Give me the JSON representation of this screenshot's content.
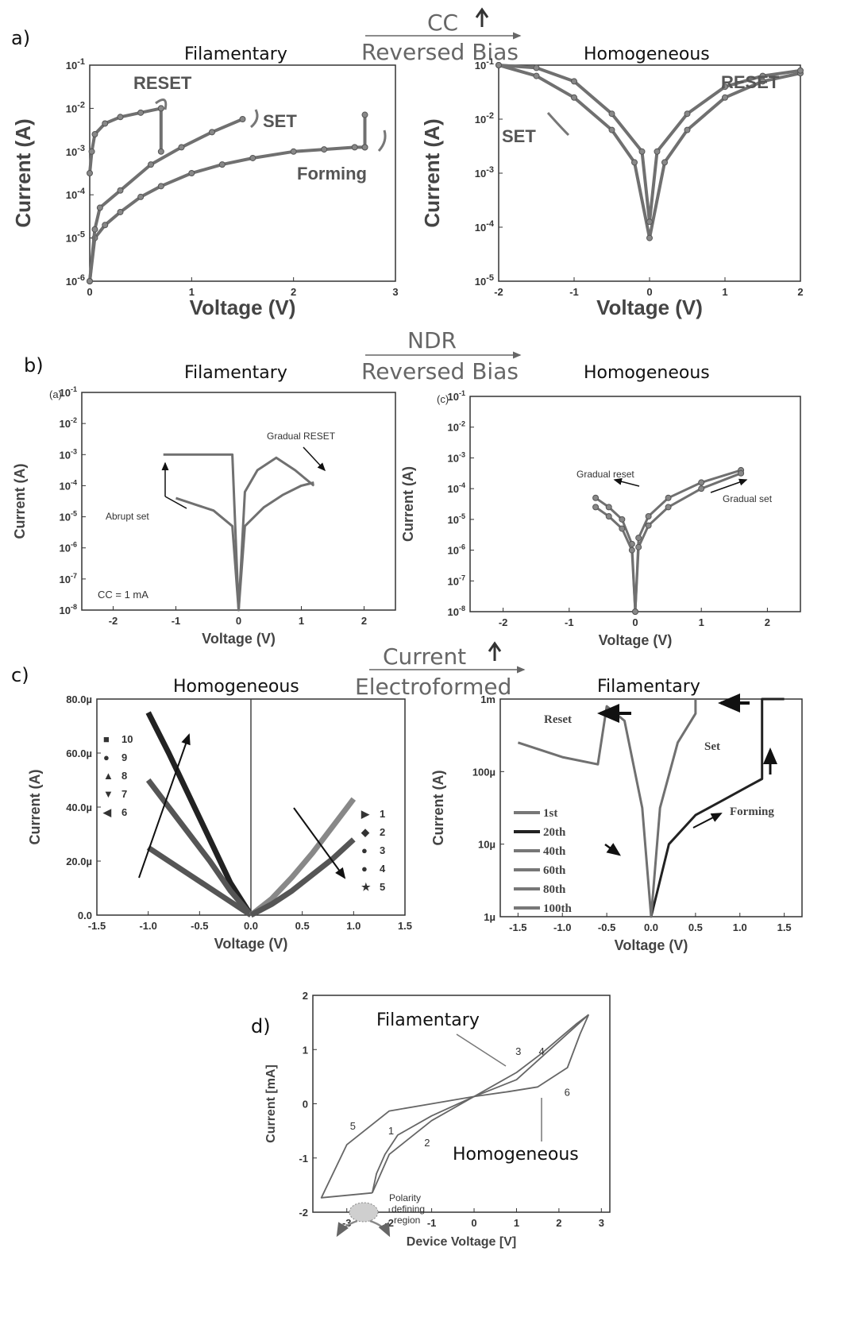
{
  "panel_labels": {
    "a": "a)",
    "b": "b)",
    "c": "c)",
    "d": "d)"
  },
  "transitions": {
    "a": {
      "top": "CC",
      "bottom": "Reversed Bias"
    },
    "b": {
      "top": "NDR",
      "bottom": "Reversed Bias"
    },
    "c": {
      "top": "Current",
      "bottom": "Electroformed"
    }
  },
  "colors": {
    "curve": "#707070",
    "dark": "#222222",
    "marker": "#888888",
    "frame": "#333333"
  },
  "chart_data": [
    {
      "id": "a1",
      "type": "line",
      "panel": "a)",
      "title": "Filamentary",
      "xlabel": "Voltage (V)",
      "ylabel": "Current (A)",
      "xlim": [
        0,
        3
      ],
      "ylim": [
        -6,
        -1
      ],
      "yscale": "log",
      "xticks": [
        "0",
        "1",
        "2",
        "3"
      ],
      "yticks": [
        "10^-6",
        "10^-5",
        "10^-4",
        "10^-3",
        "10^-2",
        "10^-1"
      ],
      "series": [
        {
          "x": [
            0.0,
            0.05,
            0.15,
            0.3,
            0.5,
            0.7,
            1.0,
            1.3,
            1.6,
            2.0,
            2.3,
            2.6,
            2.7
          ],
          "y": [
            -6.0,
            -5.0,
            -4.7,
            -4.4,
            -4.05,
            -3.8,
            -3.5,
            -3.3,
            -3.15,
            -3.0,
            -2.95,
            -2.9,
            -2.9
          ]
        },
        {
          "x": [
            2.7,
            2.7
          ],
          "y": [
            -2.9,
            -2.15
          ]
        },
        {
          "x": [
            0.0,
            0.05,
            0.1,
            0.3,
            0.6,
            0.9,
            1.2,
            1.5
          ],
          "y": [
            -6.0,
            -4.8,
            -4.3,
            -3.9,
            -3.3,
            -2.9,
            -2.55,
            -2.25
          ]
        },
        {
          "x": [
            0.0,
            0.02,
            0.05,
            0.15,
            0.3,
            0.5,
            0.7
          ],
          "y": [
            -3.5,
            -3.0,
            -2.6,
            -2.35,
            -2.2,
            -2.1,
            -2.0
          ]
        },
        {
          "x": [
            0.7,
            0.7
          ],
          "y": [
            -2.0,
            -3.0
          ]
        }
      ],
      "annotations": [
        "RESET",
        "SET",
        "Forming"
      ]
    },
    {
      "id": "a2",
      "type": "line",
      "panel": "a)",
      "title": "Homogeneous",
      "xlabel": "Voltage (V)",
      "ylabel": "Current (A)",
      "xlim": [
        -2,
        2
      ],
      "ylim": [
        -5,
        -1
      ],
      "yscale": "log",
      "xticks": [
        "-2",
        "-1",
        "0",
        "1",
        "2"
      ],
      "yticks": [
        "10^-5",
        "10^-4",
        "10^-3",
        "10^-2",
        "10^-1"
      ],
      "series": [
        {
          "x": [
            -2.0,
            -1.5,
            -1.0,
            -0.5,
            -0.2,
            0.0,
            0.2,
            0.5,
            1.0,
            1.5,
            2.0
          ],
          "y": [
            -1.0,
            -1.2,
            -1.6,
            -2.2,
            -2.8,
            -4.2,
            -2.8,
            -2.2,
            -1.6,
            -1.3,
            -1.15
          ]
        },
        {
          "x": [
            -2.0,
            -1.5,
            -1.0,
            -0.5,
            -0.1,
            0.0,
            0.1,
            0.5,
            1.0,
            1.5,
            2.0
          ],
          "y": [
            -1.0,
            -1.05,
            -1.3,
            -1.9,
            -2.6,
            -3.9,
            -2.6,
            -1.9,
            -1.4,
            -1.2,
            -1.1
          ]
        }
      ],
      "annotations": [
        "RESET",
        "SET"
      ]
    },
    {
      "id": "b1",
      "type": "line",
      "panel": "b)",
      "subpanel": "(a)",
      "title": "Filamentary",
      "xlabel": "Voltage (V)",
      "ylabel": "Current (A)",
      "xlim": [
        -2.5,
        2.5
      ],
      "ylim": [
        -8,
        -1
      ],
      "yscale": "log",
      "xticks": [
        "-2",
        "-1",
        "0",
        "1",
        "2"
      ],
      "yticks": [
        "10^-8",
        "10^-7",
        "10^-6",
        "10^-5",
        "10^-4",
        "10^-3",
        "10^-2",
        "10^-1"
      ],
      "series": [
        {
          "x": [
            -1.0,
            -0.7,
            -0.4,
            -0.1,
            0.0,
            0.1,
            0.4,
            0.7,
            1.0,
            1.2
          ],
          "y": [
            -4.4,
            -4.6,
            -4.8,
            -5.3,
            -8.0,
            -5.3,
            -4.7,
            -4.3,
            -4.0,
            -3.9
          ]
        },
        {
          "x": [
            -1.2,
            -0.6,
            -0.3,
            -0.1,
            0.0,
            0.1,
            0.3,
            0.6,
            0.9,
            1.2
          ],
          "y": [
            -3.0,
            -3.0,
            -3.0,
            -3.0,
            -8.0,
            -4.2,
            -3.5,
            -3.1,
            -3.5,
            -4.0
          ]
        }
      ],
      "annotations": [
        "Gradual RESET",
        "Abrupt set",
        "CC = 1 mA"
      ]
    },
    {
      "id": "b2",
      "type": "line",
      "panel": "b)",
      "subpanel": "(c)",
      "title": "Homogeneous",
      "xlabel": "Voltage (V)",
      "ylabel": "Current (A)",
      "xlim": [
        -2.5,
        2.5
      ],
      "ylim": [
        -8,
        -1
      ],
      "yscale": "log",
      "xticks": [
        "-2",
        "-1",
        "0",
        "1",
        "2"
      ],
      "yticks": [
        "10^-8",
        "10^-7",
        "10^-6",
        "10^-5",
        "10^-4",
        "10^-3",
        "10^-2",
        "10^-1"
      ],
      "series": [
        {
          "x": [
            -0.6,
            -0.4,
            -0.2,
            -0.05,
            0.0,
            0.05,
            0.2,
            0.5,
            1.0,
            1.6
          ],
          "y": [
            -4.3,
            -4.6,
            -5.0,
            -5.8,
            -8.0,
            -5.6,
            -4.9,
            -4.3,
            -3.8,
            -3.4
          ]
        },
        {
          "x": [
            -0.6,
            -0.4,
            -0.2,
            -0.05,
            0.0,
            0.05,
            0.2,
            0.5,
            1.0,
            1.6
          ],
          "y": [
            -4.6,
            -4.9,
            -5.3,
            -6.0,
            -8.0,
            -5.9,
            -5.2,
            -4.6,
            -4.0,
            -3.5
          ]
        }
      ],
      "annotations": [
        "Gradual reset",
        "Gradual set"
      ]
    },
    {
      "id": "c1",
      "type": "line",
      "panel": "c)",
      "title": "Homogeneous",
      "xlabel": "Voltage (V)",
      "ylabel": "Current (A)",
      "xlim": [
        -1.5,
        1.5
      ],
      "ylim": [
        0,
        80
      ],
      "xticks": [
        "-1.5",
        "-1.0",
        "-0.5",
        "0.0",
        "0.5",
        "1.0",
        "1.5"
      ],
      "yticks": [
        "0.0",
        "20.0µ",
        "40.0µ",
        "60.0µ",
        "80.0µ"
      ],
      "legend": [
        "10",
        "9",
        "8",
        "7",
        "6",
        "1",
        "2",
        "3",
        "4",
        "5"
      ],
      "series": [
        {
          "name": "10",
          "x": [
            -1.0,
            -0.8,
            -0.6,
            -0.4,
            -0.2,
            0.0
          ],
          "y": [
            75,
            60,
            44,
            28,
            12,
            0
          ]
        },
        {
          "name": "8",
          "x": [
            -1.0,
            -0.8,
            -0.6,
            -0.4,
            -0.2,
            0.0
          ],
          "y": [
            50,
            40,
            30,
            20,
            9,
            0
          ]
        },
        {
          "name": "6",
          "x": [
            -1.0,
            -0.8,
            -0.6,
            -0.4,
            -0.2,
            0.0
          ],
          "y": [
            25,
            20,
            15,
            10,
            5,
            0
          ]
        },
        {
          "name": "1",
          "x": [
            0.0,
            0.2,
            0.4,
            0.6,
            0.8,
            1.0
          ],
          "y": [
            0,
            6,
            14,
            23,
            33,
            43
          ]
        },
        {
          "name": "5",
          "x": [
            0.0,
            0.2,
            0.4,
            0.6,
            0.8,
            1.0
          ],
          "y": [
            0,
            4,
            9,
            15,
            21,
            28
          ]
        }
      ]
    },
    {
      "id": "c2",
      "type": "line",
      "panel": "c)",
      "title": "Filamentary",
      "xlabel": "Voltage (V)",
      "ylabel": "Current (A)",
      "xlim": [
        -1.7,
        1.7
      ],
      "ylim": [
        -6,
        -3
      ],
      "yscale": "log",
      "xticks": [
        "-1.5",
        "-1.0",
        "-0.5",
        "0.0",
        "0.5",
        "1.0",
        "1.5"
      ],
      "yticks": [
        "1µ",
        "10µ",
        "100µ",
        "1m"
      ],
      "legend": [
        "1st",
        "20th",
        "40th",
        "60th",
        "80th",
        "100th"
      ],
      "series": [
        {
          "x": [
            0.0,
            0.2,
            0.5,
            0.8,
            1.1,
            1.25,
            1.25,
            1.5
          ],
          "y": [
            -6.0,
            -5.0,
            -4.6,
            -4.4,
            -4.2,
            -4.1,
            -3.0,
            -3.0
          ]
        },
        {
          "x": [
            -1.5,
            -1.0,
            -0.6,
            -0.5,
            -0.3,
            -0.1,
            0.0,
            0.1,
            0.3,
            0.5,
            0.5
          ],
          "y": [
            -3.6,
            -3.8,
            -3.9,
            -3.1,
            -3.3,
            -4.5,
            -6.0,
            -4.5,
            -3.6,
            -3.2,
            -3.0
          ]
        }
      ],
      "annotations": [
        "Reset",
        "Set",
        "Forming"
      ]
    },
    {
      "id": "d",
      "type": "line",
      "panel": "d)",
      "xlabel": "Device Voltage [V]",
      "ylabel": "Current [mA]",
      "xlim": [
        -3.8,
        3.2
      ],
      "ylim": [
        -2.4,
        2.1
      ],
      "xticks": [
        "-3",
        "-2",
        "-1",
        "0",
        "1",
        "2",
        "3"
      ],
      "yticks": [
        "-2",
        "-1",
        "0",
        "1",
        "2"
      ],
      "series": [
        {
          "x": [
            0.0,
            -1.0,
            -1.8,
            -2.1,
            -2.3,
            -2.4
          ],
          "y": [
            0.0,
            -0.4,
            -0.8,
            -1.2,
            -1.6,
            -2.0
          ]
        },
        {
          "x": [
            -2.4,
            -2.0,
            -1.0,
            0.0,
            1.0,
            1.6,
            2.0,
            2.4,
            2.7
          ],
          "y": [
            -2.0,
            -1.2,
            -0.5,
            0.0,
            0.5,
            0.9,
            1.2,
            1.5,
            1.7
          ]
        },
        {
          "x": [
            2.7,
            1.0,
            0.0,
            -1.0,
            -2.0,
            -3.0,
            -3.6,
            -2.4
          ],
          "y": [
            1.7,
            0.35,
            0.0,
            -0.15,
            -0.3,
            -1.0,
            -2.1,
            -2.0
          ]
        },
        {
          "x": [
            2.7,
            2.5,
            2.2,
            1.5,
            0.8,
            0.0
          ],
          "y": [
            1.7,
            1.3,
            0.6,
            0.2,
            0.1,
            0.0
          ]
        }
      ],
      "labels": [
        "1",
        "2",
        "3",
        "4",
        "5",
        "6"
      ],
      "annotations": [
        "Filamentary",
        "Homogeneous",
        "Polarity defining region"
      ]
    }
  ],
  "text": {
    "a1_title": "Filamentary",
    "a2_title": "Homogeneous",
    "b1_title": "Filamentary",
    "b2_title": "Homogeneous",
    "c1_title": "Homogeneous",
    "c2_title": "Filamentary",
    "a1_reset": "RESET",
    "a1_set": "SET",
    "a1_forming": "Forming",
    "a2_reset": "RESET",
    "a2_set": "SET",
    "b1_sub": "(a)",
    "b2_sub": "(c)",
    "b1_gradual": "Gradual RESET",
    "b1_abrupt": "Abrupt set",
    "b1_cc": "CC = 1 mA",
    "b2_reset": "Gradual reset",
    "b2_set": "Gradual set",
    "c2_reset": "Reset",
    "c2_set": "Set",
    "c2_forming": "Forming",
    "d_fil": "Filamentary",
    "d_hom": "Homogeneous",
    "d_pol1": "Polarity",
    "d_pol2": "defining",
    "d_pol3": "region"
  }
}
